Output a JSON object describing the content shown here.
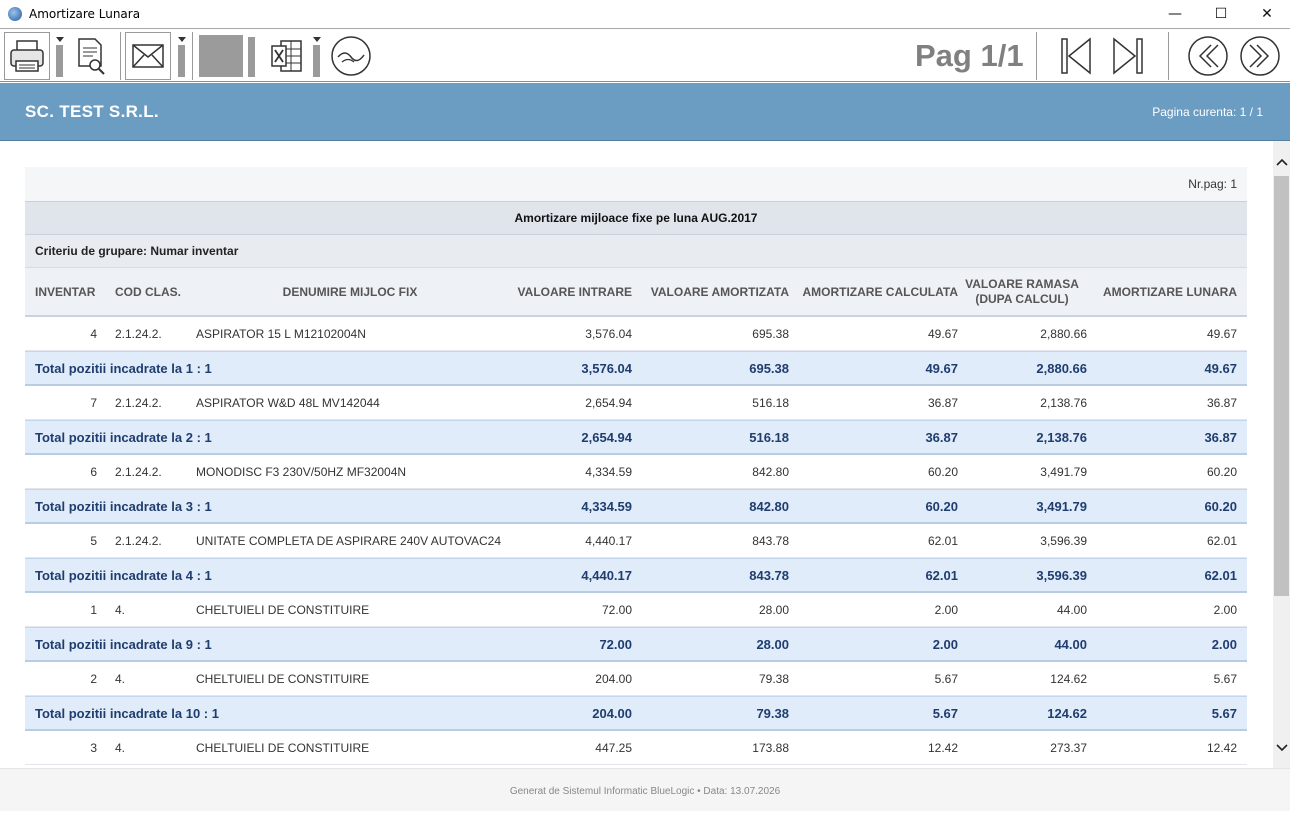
{
  "window": {
    "title": "Amortizare Lunara",
    "minimize": "—",
    "maximize": "☐",
    "close": "✕"
  },
  "toolbar": {
    "pagination": "Pag 1/1",
    "icons": [
      "printer-icon",
      "print-preview-icon",
      "email-icon",
      "export-gray-icon",
      "excel-icon",
      "logo-icon",
      "first-page-icon",
      "last-page-icon",
      "previous-page-icon",
      "next-page-icon"
    ]
  },
  "header": {
    "company": "SC. TEST S.R.L.",
    "current_page": "Pagina curenta: 1 / 1",
    "color": "#6b9cc2"
  },
  "report": {
    "nr_pag": "Nr.pag: 1",
    "title": "Amortizare mijloace fixe pe luna AUG.2017",
    "grouping": "Criteriu de grupare: Numar inventar",
    "columns": {
      "inventar": "INVENTAR",
      "cod_clas": "COD CLAS.",
      "denumire": "DENUMIRE MIJLOC FIX",
      "valoare_intrare": "VALOARE INTRARE",
      "valoare_amortizata": "VALOARE AMORTIZATA",
      "amortizare_calculata": "AMORTIZARE CALCULATA",
      "valoare_ramasa": "VALOARE RAMASA",
      "valoare_ramasa_sub": "(DUPA CALCUL)",
      "amortizare_lunara": "AMORTIZARE LUNARA"
    },
    "rows": [
      {
        "type": "item",
        "inventar": "4",
        "cod": "2.1.24.2.",
        "denumire": "ASPIRATOR 15 L M12102004N",
        "intrare": "3,576.04",
        "amortizata": "695.38",
        "calculata": "49.67",
        "ramasa": "2,880.66",
        "lunara": "49.67"
      },
      {
        "type": "total",
        "label": "Total pozitii incadrate la 1 : 1",
        "intrare": "3,576.04",
        "amortizata": "695.38",
        "calculata": "49.67",
        "ramasa": "2,880.66",
        "lunara": "49.67"
      },
      {
        "type": "item",
        "inventar": "7",
        "cod": "2.1.24.2.",
        "denumire": "ASPIRATOR W&D 48L MV142044",
        "intrare": "2,654.94",
        "amortizata": "516.18",
        "calculata": "36.87",
        "ramasa": "2,138.76",
        "lunara": "36.87"
      },
      {
        "type": "total",
        "label": "Total pozitii incadrate la 2 : 1",
        "intrare": "2,654.94",
        "amortizata": "516.18",
        "calculata": "36.87",
        "ramasa": "2,138.76",
        "lunara": "36.87"
      },
      {
        "type": "item",
        "inventar": "6",
        "cod": "2.1.24.2.",
        "denumire": "MONODISC F3 230V/50HZ MF32004N",
        "intrare": "4,334.59",
        "amortizata": "842.80",
        "calculata": "60.20",
        "ramasa": "3,491.79",
        "lunara": "60.20"
      },
      {
        "type": "total",
        "label": "Total pozitii incadrate la 3 : 1",
        "intrare": "4,334.59",
        "amortizata": "842.80",
        "calculata": "60.20",
        "ramasa": "3,491.79",
        "lunara": "60.20"
      },
      {
        "type": "item",
        "inventar": "5",
        "cod": "2.1.24.2.",
        "denumire": "UNITATE COMPLETA DE ASPIRARE 240V AUTOVAC24",
        "intrare": "4,440.17",
        "amortizata": "843.78",
        "calculata": "62.01",
        "ramasa": "3,596.39",
        "lunara": "62.01"
      },
      {
        "type": "total",
        "label": "Total pozitii incadrate la 4 : 1",
        "intrare": "4,440.17",
        "amortizata": "843.78",
        "calculata": "62.01",
        "ramasa": "3,596.39",
        "lunara": "62.01"
      },
      {
        "type": "item",
        "inventar": "1",
        "cod": "4.",
        "denumire": "CHELTUIELI DE CONSTITUIRE",
        "intrare": "72.00",
        "amortizata": "28.00",
        "calculata": "2.00",
        "ramasa": "44.00",
        "lunara": "2.00"
      },
      {
        "type": "total",
        "label": "Total pozitii incadrate la 9 : 1",
        "intrare": "72.00",
        "amortizata": "28.00",
        "calculata": "2.00",
        "ramasa": "44.00",
        "lunara": "2.00"
      },
      {
        "type": "item",
        "inventar": "2",
        "cod": "4.",
        "denumire": "CHELTUIELI DE CONSTITUIRE",
        "intrare": "204.00",
        "amortizata": "79.38",
        "calculata": "5.67",
        "ramasa": "124.62",
        "lunara": "5.67"
      },
      {
        "type": "total",
        "label": "Total pozitii incadrate la 10 : 1",
        "intrare": "204.00",
        "amortizata": "79.38",
        "calculata": "5.67",
        "ramasa": "124.62",
        "lunara": "5.67"
      },
      {
        "type": "item",
        "inventar": "3",
        "cod": "4.",
        "denumire": "CHELTUIELI DE CONSTITUIRE",
        "intrare": "447.25",
        "amortizata": "173.88",
        "calculata": "12.42",
        "ramasa": "273.37",
        "lunara": "12.42"
      }
    ]
  },
  "footer": {
    "text": "Generat de Sistemul Informatic BlueLogic • Data: 13.07.2026"
  }
}
